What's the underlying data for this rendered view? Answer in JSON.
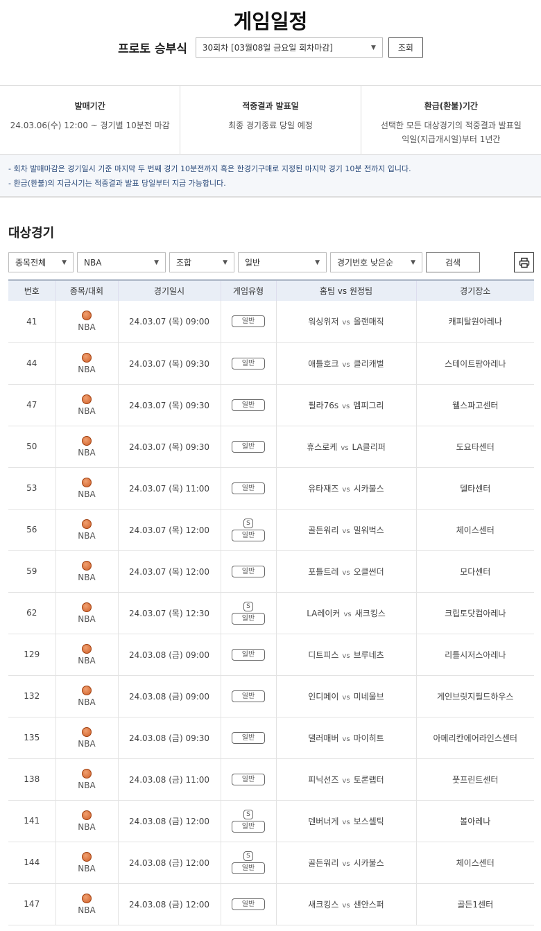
{
  "title": "게임일정",
  "round": {
    "label": "프로토 승부식",
    "selected": "30회차 [03월08일 금요일 회차마감]",
    "button": "조회"
  },
  "info": [
    {
      "heading": "발매기간",
      "lines": [
        "24.03.06(수) 12:00 ~ 경기별 10분전 마감"
      ]
    },
    {
      "heading": "적중결과 발표일",
      "lines": [
        "최종 경기종료 당일 예정"
      ]
    },
    {
      "heading": "환급(환불)기간",
      "lines": [
        "선택한 모든 대상경기의 적중결과 발표일",
        "익일(지급개시일)부터 1년간"
      ]
    }
  ],
  "notes": [
    "- 회차 발매마감은 경기일시 기준 마지막 두 번째 경기 10분전까지 혹은 한경기구매로 지정된 마지막 경기 10분 전까지 입니다.",
    "- 환급(환불)의 지급시기는 적중결과 발표 당일부터 지급 가능합니다."
  ],
  "section_title": "대상경기",
  "filters": {
    "sport": "종목전체",
    "league": "NBA",
    "type": "조합",
    "game": "일반",
    "sort": "경기번호 낮은순",
    "search": "검색",
    "print_icon": "printer-icon"
  },
  "columns": [
    "번호",
    "종목/대회",
    "경기일시",
    "게임유형",
    "홈팀 vs 원정팀",
    "경기장소"
  ],
  "vs": "vs",
  "s_mark": "S",
  "rows": [
    {
      "no": "41",
      "league": "NBA",
      "date": "24.03.07 (목) 09:00",
      "s": false,
      "type": "일반",
      "home": "워싱위저",
      "away": "올랜매직",
      "venue": "캐피탈원아레나"
    },
    {
      "no": "44",
      "league": "NBA",
      "date": "24.03.07 (목) 09:30",
      "s": false,
      "type": "일반",
      "home": "애틀호크",
      "away": "클리캐벌",
      "venue": "스테이트팜아레나"
    },
    {
      "no": "47",
      "league": "NBA",
      "date": "24.03.07 (목) 09:30",
      "s": false,
      "type": "일반",
      "home": "필라76s",
      "away": "멤피그리",
      "venue": "웰스파고센터"
    },
    {
      "no": "50",
      "league": "NBA",
      "date": "24.03.07 (목) 09:30",
      "s": false,
      "type": "일반",
      "home": "휴스로케",
      "away": "LA클리퍼",
      "venue": "도요타센터"
    },
    {
      "no": "53",
      "league": "NBA",
      "date": "24.03.07 (목) 11:00",
      "s": false,
      "type": "일반",
      "home": "유타재즈",
      "away": "시카불스",
      "venue": "델타센터"
    },
    {
      "no": "56",
      "league": "NBA",
      "date": "24.03.07 (목) 12:00",
      "s": true,
      "type": "일반",
      "home": "골든워리",
      "away": "밀워벅스",
      "venue": "체이스센터"
    },
    {
      "no": "59",
      "league": "NBA",
      "date": "24.03.07 (목) 12:00",
      "s": false,
      "type": "일반",
      "home": "포틀트레",
      "away": "오클썬더",
      "venue": "모다센터"
    },
    {
      "no": "62",
      "league": "NBA",
      "date": "24.03.07 (목) 12:30",
      "s": true,
      "type": "일반",
      "home": "LA레이커",
      "away": "새크킹스",
      "venue": "크립토닷컴아레나"
    },
    {
      "no": "129",
      "league": "NBA",
      "date": "24.03.08 (금) 09:00",
      "s": false,
      "type": "일반",
      "home": "디트피스",
      "away": "브루네츠",
      "venue": "리틀시저스아레나"
    },
    {
      "no": "132",
      "league": "NBA",
      "date": "24.03.08 (금) 09:00",
      "s": false,
      "type": "일반",
      "home": "인디페이",
      "away": "미네울브",
      "venue": "게인브릿지필드하우스"
    },
    {
      "no": "135",
      "league": "NBA",
      "date": "24.03.08 (금) 09:30",
      "s": false,
      "type": "일반",
      "home": "댈러매버",
      "away": "마이히트",
      "venue": "아메리칸에어라인스센터"
    },
    {
      "no": "138",
      "league": "NBA",
      "date": "24.03.08 (금) 11:00",
      "s": false,
      "type": "일반",
      "home": "피닉선즈",
      "away": "토론랩터",
      "venue": "풋프린트센터"
    },
    {
      "no": "141",
      "league": "NBA",
      "date": "24.03.08 (금) 12:00",
      "s": true,
      "type": "일반",
      "home": "덴버너게",
      "away": "보스셀틱",
      "venue": "볼아레나"
    },
    {
      "no": "144",
      "league": "NBA",
      "date": "24.03.08 (금) 12:00",
      "s": true,
      "type": "일반",
      "home": "골든워리",
      "away": "시카불스",
      "venue": "체이스센터"
    },
    {
      "no": "147",
      "league": "NBA",
      "date": "24.03.08 (금) 12:00",
      "s": false,
      "type": "일반",
      "home": "새크킹스",
      "away": "샌안스퍼",
      "venue": "골든1센터"
    }
  ]
}
